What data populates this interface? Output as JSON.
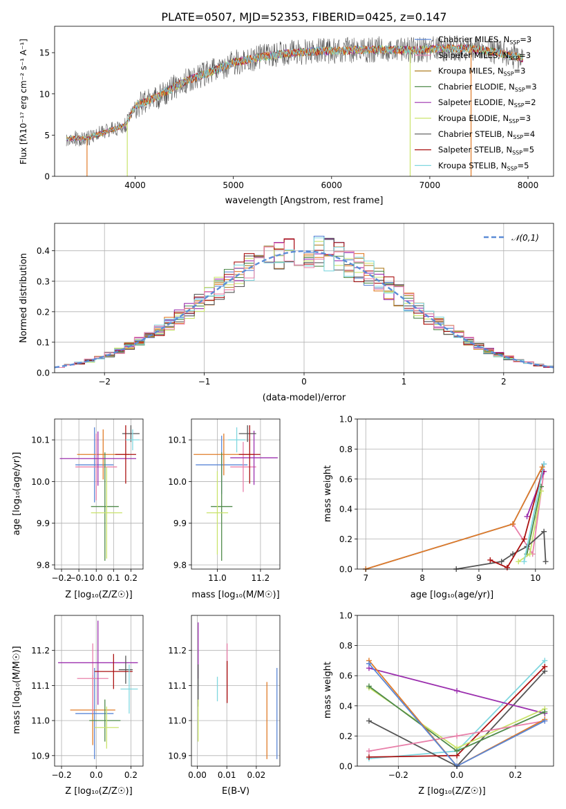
{
  "colors": [
    "#5a86d6",
    "#e07b27",
    "#b07f24",
    "#4f8a4a",
    "#9b2fae",
    "#c9e36b",
    "#555555",
    "#aa1111",
    "#7fd7df",
    "#e87fa9"
  ],
  "legend": {
    "gaussian": {
      "label": "𝒩(0,1)",
      "color": "#5b8bd6"
    },
    "entries": [
      {
        "label": "Chabrier MILES, N",
        "sub": "SSP",
        "tail": "=3",
        "color": "#5a86d6"
      },
      {
        "label": "Salpeter MILES, N",
        "sub": "SSP",
        "tail": "=3",
        "color": "#e87fa9"
      },
      {
        "label": "Kroupa MILES, N",
        "sub": "SSP",
        "tail": "=3",
        "color": "#b07f24"
      },
      {
        "label": "Chabrier ELODIE, N",
        "sub": "SSP",
        "tail": "=3",
        "color": "#4f8a4a"
      },
      {
        "label": "Salpeter ELODIE, N",
        "sub": "SSP",
        "tail": "=2",
        "color": "#9b2fae"
      },
      {
        "label": "Kroupa ELODIE, N",
        "sub": "SSP",
        "tail": "=3",
        "color": "#c9e36b"
      },
      {
        "label": "Chabrier STELIB, N",
        "sub": "SSP",
        "tail": "=4",
        "color": "#555555"
      },
      {
        "label": "Salpeter STELIB, N",
        "sub": "SSP",
        "tail": "=5",
        "color": "#aa1111"
      },
      {
        "label": "Kroupa STELIB, N",
        "sub": "SSP",
        "tail": "=5",
        "color": "#7fd7df"
      }
    ]
  },
  "chart_data": [
    {
      "id": "spectrum",
      "type": "line",
      "title": "PLATE=0507, MJD=52353, FIBERID=0425, z=0.147",
      "xlabel": "wavelength [Angstrom, rest frame]",
      "ylabel": "Flux [fλ10⁻¹⁷ erg cm⁻² s⁻¹ A⁻¹]",
      "xlim": [
        3180,
        8260
      ],
      "ylim": [
        0,
        18.2
      ],
      "xticks": [
        4000,
        5000,
        6000,
        7000,
        8000
      ],
      "yticks": [
        0,
        5,
        10,
        15
      ],
      "series_range": [
        3300,
        7950
      ],
      "continuum": [
        [
          3300,
          4.6
        ],
        [
          3500,
          4.6
        ],
        [
          3700,
          5.4
        ],
        [
          3900,
          6.2
        ],
        [
          4000,
          8.5
        ],
        [
          4200,
          9.5
        ],
        [
          4500,
          11.5
        ],
        [
          4800,
          12.8
        ],
        [
          5000,
          13.8
        ],
        [
          5300,
          14.5
        ],
        [
          5600,
          15.0
        ],
        [
          5900,
          15.2
        ],
        [
          6200,
          15.3
        ],
        [
          6500,
          15.4
        ],
        [
          6800,
          15.3
        ],
        [
          7100,
          15.5
        ],
        [
          7400,
          15.5
        ],
        [
          7700,
          15.0
        ],
        [
          7950,
          14.3
        ]
      ],
      "drops": [
        {
          "x": 3510,
          "color": "#e07b27"
        },
        {
          "x": 3920,
          "color": "#c9e36b"
        },
        {
          "x": 6800,
          "color": "#c9e36b"
        },
        {
          "x": 7420,
          "color": "#e07b27"
        }
      ]
    },
    {
      "id": "residuals",
      "type": "histogram",
      "xlabel": "(data-model)/error",
      "ylabel": "Normed distribution",
      "xlim": [
        -2.5,
        2.5
      ],
      "ylim": [
        0,
        0.49
      ],
      "xticks": [
        -2,
        -1,
        0,
        1,
        2
      ],
      "yticks": [
        0.0,
        0.1,
        0.2,
        0.3,
        0.4
      ],
      "bin_width": 0.1
    },
    {
      "id": "age_vs_Z",
      "type": "errorbar",
      "xlabel": "Z [log₁₀(Z/Z☉)]",
      "ylabel": "age  [log₁₀(age/yr)]",
      "xlim": [
        -0.24,
        0.27
      ],
      "ylim": [
        9.79,
        10.15
      ],
      "xticks": [
        -0.2,
        -0.1,
        0.0,
        0.1,
        0.2
      ],
      "yticks": [
        9.8,
        9.9,
        10.0,
        10.1
      ],
      "points": [
        {
          "x": -0.01,
          "y": 10.04,
          "xerr": 0.11,
          "yerr": 0.09,
          "color": "#5a86d6"
        },
        {
          "x": 0.04,
          "y": 10.065,
          "xerr": 0.15,
          "yerr": 0.06,
          "color": "#e07b27"
        },
        {
          "x": 0.0,
          "y": 10.035,
          "xerr": 0.12,
          "yerr": 0.08,
          "color": "#e87fa9"
        },
        {
          "x": 0.05,
          "y": 9.94,
          "xerr": 0.08,
          "yerr": 0.13,
          "color": "#4f8a4a"
        },
        {
          "x": 0.01,
          "y": 10.055,
          "xerr": 0.22,
          "yerr": 0.065,
          "color": "#9b2fae"
        },
        {
          "x": 0.06,
          "y": 9.925,
          "xerr": 0.09,
          "yerr": 0.11,
          "color": "#c9e36b"
        },
        {
          "x": 0.2,
          "y": 10.115,
          "xerr": 0.05,
          "yerr": 0.02,
          "color": "#555555"
        },
        {
          "x": 0.17,
          "y": 10.065,
          "xerr": 0.06,
          "yerr": 0.07,
          "color": "#aa1111"
        },
        {
          "x": 0.21,
          "y": 10.1,
          "xerr": 0.04,
          "yerr": 0.025,
          "color": "#7fd7df"
        }
      ]
    },
    {
      "id": "age_vs_mass",
      "type": "errorbar",
      "xlabel": "mass [log₁₀(M/M☉)]",
      "ylabel": "",
      "xlim": [
        10.88,
        11.29
      ],
      "ylim": [
        9.79,
        10.15
      ],
      "xticks": [
        11.0,
        11.2
      ],
      "yticks": [
        9.8,
        9.9,
        10.0,
        10.1
      ],
      "points": [
        {
          "x": 11.02,
          "y": 10.04,
          "xerr": 0.12,
          "yerr": 0.07,
          "color": "#5a86d6"
        },
        {
          "x": 11.03,
          "y": 10.065,
          "xerr": 0.14,
          "yerr": 0.05,
          "color": "#e07b27"
        },
        {
          "x": 11.12,
          "y": 10.035,
          "xerr": 0.06,
          "yerr": 0.06,
          "color": "#e87fa9"
        },
        {
          "x": 11.02,
          "y": 9.94,
          "xerr": 0.05,
          "yerr": 0.13,
          "color": "#4f8a4a"
        },
        {
          "x": 11.17,
          "y": 10.057,
          "xerr": 0.11,
          "yerr": 0.065,
          "color": "#9b2fae"
        },
        {
          "x": 11.0,
          "y": 9.925,
          "xerr": 0.05,
          "yerr": 0.1,
          "color": "#c9e36b"
        },
        {
          "x": 11.14,
          "y": 10.115,
          "xerr": 0.04,
          "yerr": 0.02,
          "color": "#555555"
        },
        {
          "x": 11.15,
          "y": 10.065,
          "xerr": 0.05,
          "yerr": 0.07,
          "color": "#aa1111"
        },
        {
          "x": 11.09,
          "y": 10.1,
          "xerr": 0.04,
          "yerr": 0.03,
          "color": "#7fd7df"
        }
      ]
    },
    {
      "id": "weight_vs_age",
      "type": "line",
      "xlabel": "age  [log₁₀(age/yr)]",
      "ylabel": "mass weight",
      "xlim": [
        6.85,
        10.32
      ],
      "ylim": [
        0,
        1
      ],
      "xticks": [
        7,
        8,
        9,
        10
      ],
      "yticks": [
        0.0,
        0.2,
        0.4,
        0.6,
        0.8,
        1.0
      ],
      "series": [
        {
          "color": "#5a86d6",
          "points": [
            [
              7.0,
              0.0
            ],
            [
              9.6,
              0.3
            ],
            [
              10.15,
              0.7
            ]
          ]
        },
        {
          "color": "#e87fa9",
          "points": [
            [
              9.6,
              0.3
            ],
            [
              9.95,
              0.1
            ],
            [
              10.15,
              0.65
            ]
          ]
        },
        {
          "color": "#9b2fae",
          "points": [
            [
              9.85,
              0.35
            ],
            [
              10.15,
              0.65
            ]
          ]
        },
        {
          "color": "#4f8a4a",
          "points": [
            [
              9.85,
              0.1
            ],
            [
              10.1,
              0.55
            ]
          ]
        },
        {
          "color": "#c9e36b",
          "points": [
            [
              9.7,
              0.05
            ],
            [
              9.9,
              0.1
            ],
            [
              10.1,
              0.52
            ]
          ]
        },
        {
          "color": "#555555",
          "points": [
            [
              8.6,
              0.0
            ],
            [
              9.4,
              0.05
            ],
            [
              9.6,
              0.1
            ],
            [
              9.85,
              0.15
            ],
            [
              10.15,
              0.25
            ],
            [
              10.18,
              0.05
            ]
          ]
        },
        {
          "color": "#aa1111",
          "points": [
            [
              9.2,
              0.06
            ],
            [
              9.5,
              0.01
            ],
            [
              9.8,
              0.2
            ],
            [
              10.12,
              0.65
            ]
          ]
        },
        {
          "color": "#7fd7df",
          "points": [
            [
              9.8,
              0.05
            ],
            [
              10.15,
              0.7
            ]
          ]
        },
        {
          "color": "#e07b27",
          "points": [
            [
              7.0,
              0.0
            ],
            [
              9.6,
              0.3
            ],
            [
              10.12,
              0.68
            ]
          ]
        }
      ]
    },
    {
      "id": "mass_vs_Z",
      "type": "errorbar",
      "xlabel": "Z [log₁₀(Z/Z☉)]",
      "ylabel": "mass [log₁₀(M/M☉)]",
      "xlim": [
        -0.24,
        0.27
      ],
      "ylim": [
        10.87,
        11.3
      ],
      "xticks": [
        -0.2,
        0.0,
        0.2
      ],
      "yticks": [
        10.9,
        11.0,
        11.1,
        11.2
      ],
      "points": [
        {
          "x": -0.01,
          "y": 11.02,
          "xerr": 0.11,
          "yerr": 0.13,
          "color": "#5a86d6"
        },
        {
          "x": -0.02,
          "y": 11.03,
          "xerr": 0.13,
          "yerr": 0.1,
          "color": "#e07b27"
        },
        {
          "x": -0.02,
          "y": 11.12,
          "xerr": 0.09,
          "yerr": 0.1,
          "color": "#e87fa9"
        },
        {
          "x": 0.05,
          "y": 11.0,
          "xerr": 0.09,
          "yerr": 0.06,
          "color": "#4f8a4a"
        },
        {
          "x": 0.01,
          "y": 11.165,
          "xerr": 0.23,
          "yerr": 0.12,
          "color": "#9b2fae"
        },
        {
          "x": 0.06,
          "y": 10.98,
          "xerr": 0.07,
          "yerr": 0.06,
          "color": "#c9e36b"
        },
        {
          "x": 0.17,
          "y": 11.145,
          "xerr": 0.04,
          "yerr": 0.04,
          "color": "#555555"
        },
        {
          "x": 0.1,
          "y": 11.14,
          "xerr": 0.11,
          "yerr": 0.05,
          "color": "#aa1111"
        },
        {
          "x": 0.19,
          "y": 11.09,
          "xerr": 0.05,
          "yerr": 0.07,
          "color": "#7fd7df"
        }
      ]
    },
    {
      "id": "mass_vs_ebv",
      "type": "errorbar",
      "xlabel": "E(B-V)",
      "ylabel": "",
      "xlim": [
        -0.002,
        0.028
      ],
      "ylim": [
        10.87,
        11.3
      ],
      "xticks": [
        0.0,
        0.01,
        0.02
      ],
      "yticks": [
        10.9,
        11.0,
        11.1,
        11.2
      ],
      "points": [
        {
          "x": 0.027,
          "y": 11.02,
          "xerr": 0,
          "yerr": 0.13,
          "color": "#5a86d6"
        },
        {
          "x": 0.0236,
          "y": 11.0,
          "xerr": 0,
          "yerr": 0.11,
          "color": "#e07b27"
        },
        {
          "x": 0.0101,
          "y": 11.14,
          "xerr": 0,
          "yerr": 0.08,
          "color": "#e87fa9"
        },
        {
          "x": 0.0003,
          "y": 11.2,
          "xerr": 0,
          "yerr": 0.08,
          "color": "#9b2fae"
        },
        {
          "x": 0.0003,
          "y": 11.1,
          "xerr": 0,
          "yerr": 0.06,
          "color": "#555555"
        },
        {
          "x": 0.0003,
          "y": 11.0,
          "xerr": 0,
          "yerr": 0.06,
          "color": "#c9e36b"
        },
        {
          "x": 0.0068,
          "y": 11.09,
          "xerr": 0,
          "yerr": 0.035,
          "color": "#7fd7df"
        },
        {
          "x": 0.0101,
          "y": 11.11,
          "xerr": 0,
          "yerr": 0.06,
          "color": "#aa1111"
        }
      ]
    },
    {
      "id": "weight_vs_Z",
      "type": "line",
      "xlabel": "Z [log₁₀(Z/Z☉)]",
      "ylabel": "mass weight",
      "xlim": [
        -0.34,
        0.33
      ],
      "ylim": [
        0,
        1
      ],
      "xticks": [
        -0.2,
        0.0,
        0.2
      ],
      "yticks": [
        0.0,
        0.2,
        0.4,
        0.6,
        0.8,
        1.0
      ],
      "series": [
        {
          "color": "#7fd7df",
          "points": [
            [
              -0.3,
              0.05
            ],
            [
              0.0,
              0.1
            ],
            [
              0.3,
              0.7
            ]
          ]
        },
        {
          "color": "#555555",
          "points": [
            [
              -0.3,
              0.3
            ],
            [
              0.0,
              0.0
            ],
            [
              0.3,
              0.63
            ]
          ]
        },
        {
          "color": "#aa1111",
          "points": [
            [
              -0.3,
              0.06
            ],
            [
              0.0,
              0.07
            ],
            [
              0.3,
              0.66
            ]
          ]
        },
        {
          "color": "#9b2fae",
          "points": [
            [
              -0.3,
              0.65
            ],
            [
              0.0,
              0.5
            ],
            [
              0.3,
              0.35
            ]
          ]
        },
        {
          "color": "#c9e36b",
          "points": [
            [
              -0.3,
              0.52
            ],
            [
              0.0,
              0.12
            ],
            [
              0.3,
              0.38
            ]
          ]
        },
        {
          "color": "#4f8a4a",
          "points": [
            [
              -0.3,
              0.53
            ],
            [
              0.0,
              0.1
            ],
            [
              0.3,
              0.36
            ]
          ]
        },
        {
          "color": "#e87fa9",
          "points": [
            [
              -0.3,
              0.1
            ],
            [
              0.0,
              0.2
            ],
            [
              0.3,
              0.3
            ]
          ]
        },
        {
          "color": "#e07b27",
          "points": [
            [
              -0.3,
              0.7
            ],
            [
              0.0,
              0.0
            ],
            [
              0.3,
              0.31
            ]
          ]
        },
        {
          "color": "#5a86d6",
          "points": [
            [
              -0.3,
              0.68
            ],
            [
              0.0,
              0.0
            ],
            [
              0.3,
              0.3
            ]
          ]
        }
      ]
    }
  ]
}
